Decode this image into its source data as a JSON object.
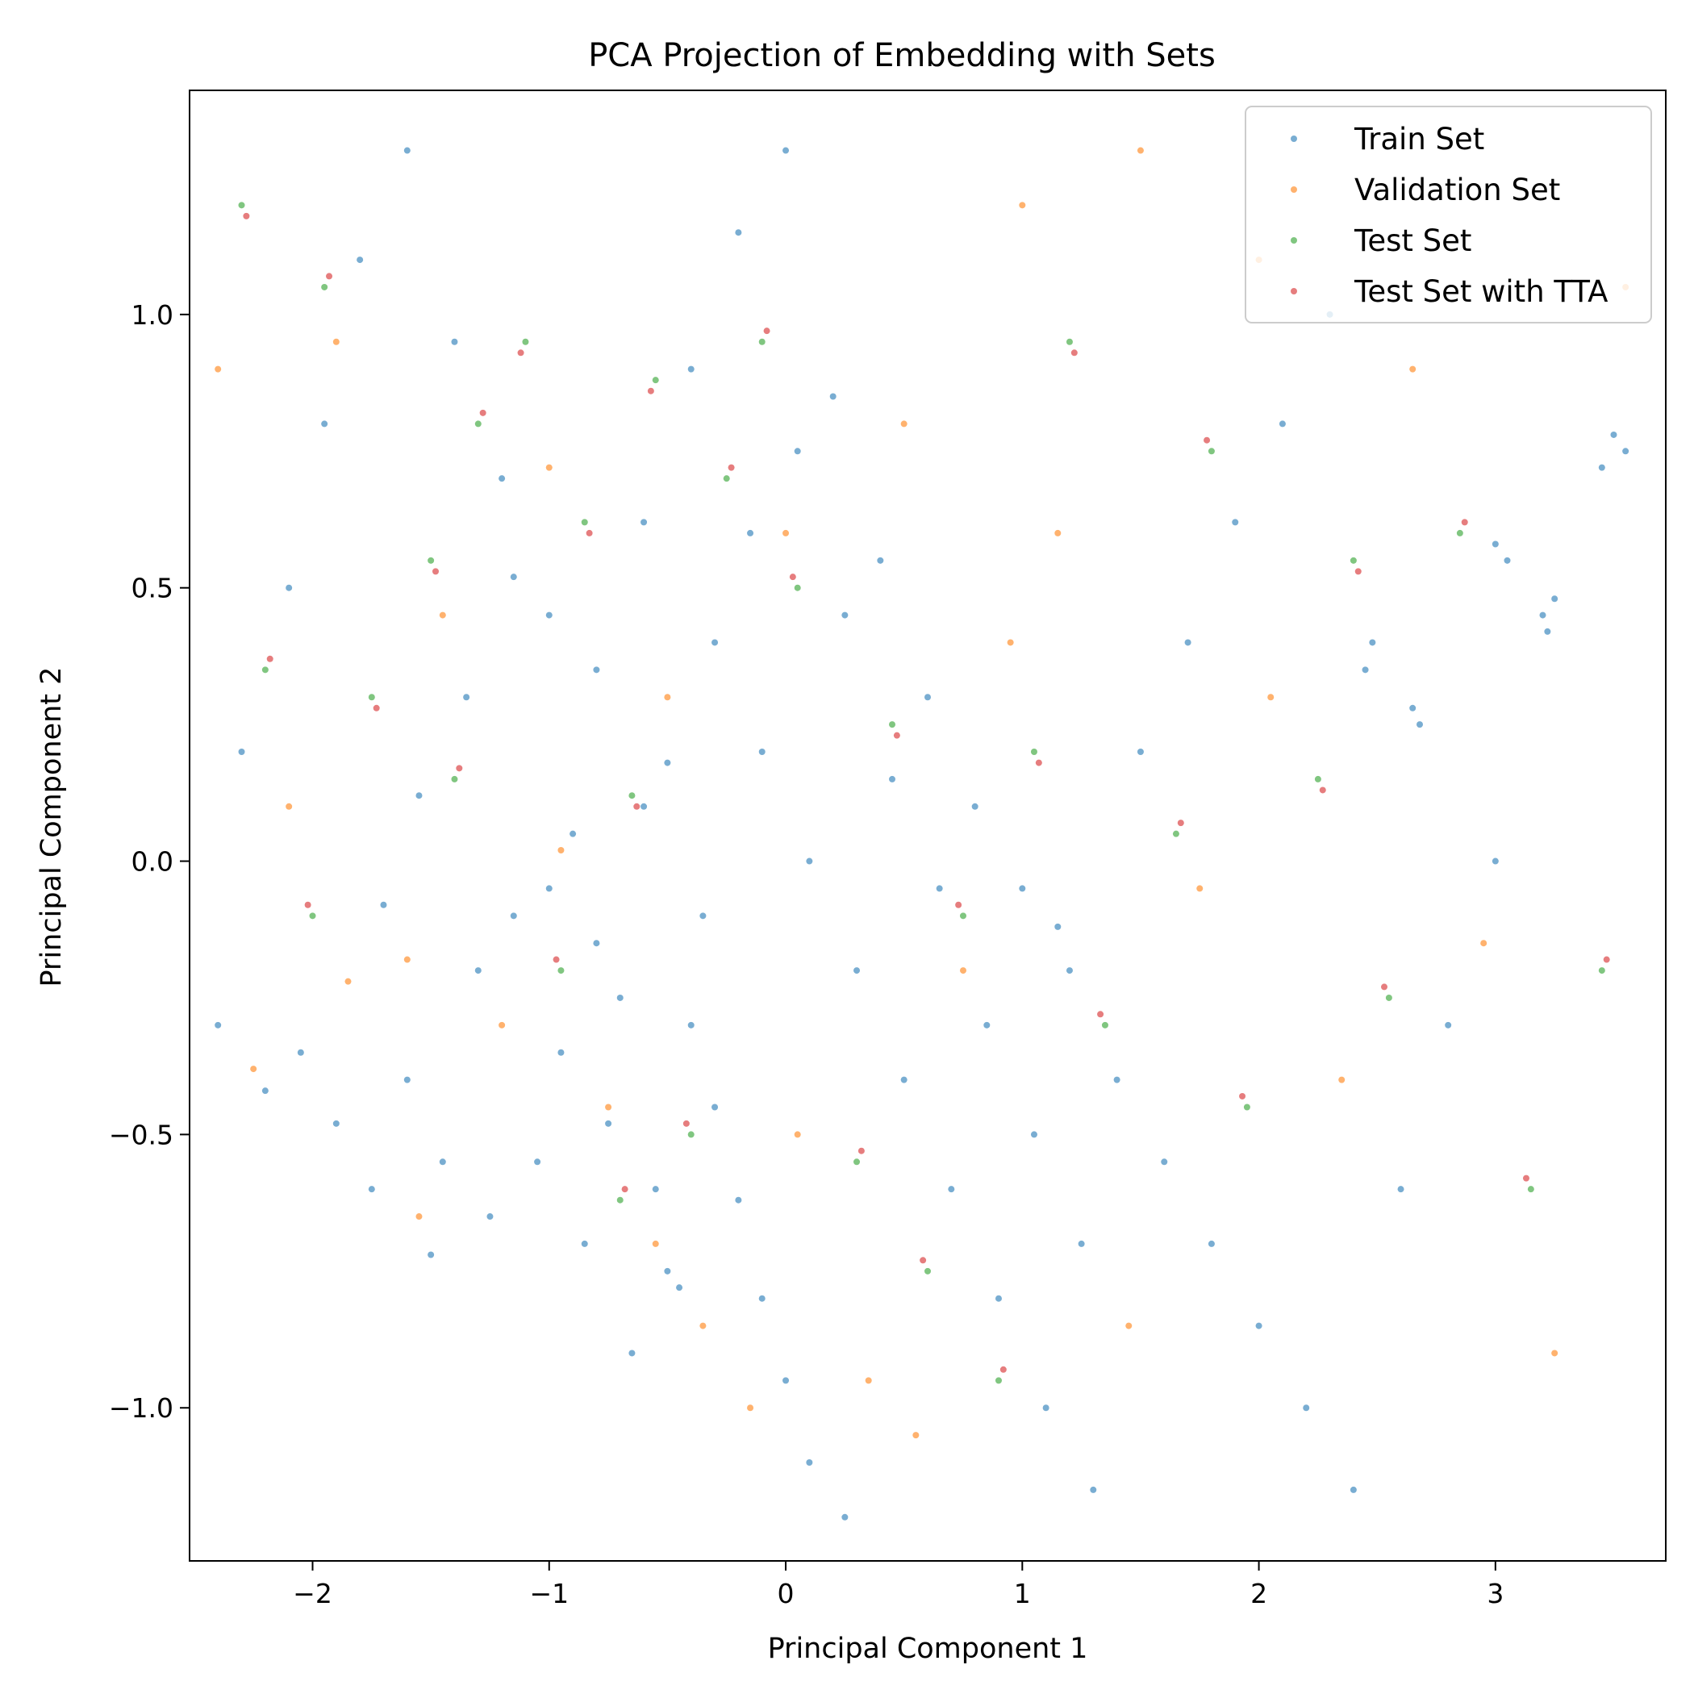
{
  "chart_data": {
    "type": "scatter",
    "title": "PCA Projection of Embedding with Sets",
    "xlabel": "Principal Component 1",
    "ylabel": "Principal Component 2",
    "xlim": [
      -2.52,
      3.72
    ],
    "ylim": [
      -1.28,
      1.41
    ],
    "xticks": [
      {
        "value": -2,
        "label": "−2"
      },
      {
        "value": -1,
        "label": "−1"
      },
      {
        "value": 0,
        "label": "0"
      },
      {
        "value": 1,
        "label": "1"
      },
      {
        "value": 2,
        "label": "2"
      },
      {
        "value": 3,
        "label": "3"
      }
    ],
    "yticks": [
      {
        "value": -1.0,
        "label": "−1.0"
      },
      {
        "value": -0.5,
        "label": "−0.5"
      },
      {
        "value": 0.0,
        "label": "0.0"
      },
      {
        "value": 0.5,
        "label": "0.5"
      },
      {
        "value": 1.0,
        "label": "1.0"
      }
    ],
    "grid": false,
    "legend_position": "top-right",
    "series": [
      {
        "name": "Train Set",
        "color": "#1f77b4",
        "opacity": 0.6,
        "points": [
          [
            -2.4,
            -0.3
          ],
          [
            -2.2,
            -0.42
          ],
          [
            -2.05,
            -0.35
          ],
          [
            -1.9,
            -0.48
          ],
          [
            -1.75,
            -0.6
          ],
          [
            -1.6,
            -0.4
          ],
          [
            -1.45,
            -0.55
          ],
          [
            -1.3,
            -0.2
          ],
          [
            -1.15,
            -0.1
          ],
          [
            -1.0,
            -0.05
          ],
          [
            -0.9,
            0.05
          ],
          [
            -0.8,
            -0.15
          ],
          [
            -0.7,
            -0.25
          ],
          [
            -0.6,
            0.1
          ],
          [
            -0.5,
            0.18
          ],
          [
            -0.4,
            -0.3
          ],
          [
            -0.3,
            -0.45
          ],
          [
            -0.2,
            -0.62
          ],
          [
            -0.1,
            -0.8
          ],
          [
            0.0,
            -0.95
          ],
          [
            0.1,
            -1.1
          ],
          [
            0.25,
            -1.2
          ],
          [
            -0.5,
            -0.75
          ],
          [
            -0.45,
            -0.78
          ],
          [
            -0.65,
            -0.9
          ],
          [
            -0.85,
            -0.7
          ],
          [
            -1.05,
            -0.55
          ],
          [
            -1.25,
            -0.65
          ],
          [
            -1.5,
            -0.72
          ],
          [
            -2.3,
            0.2
          ],
          [
            -2.1,
            0.5
          ],
          [
            -1.95,
            0.8
          ],
          [
            -1.8,
            1.1
          ],
          [
            -1.6,
            1.3
          ],
          [
            -1.4,
            0.95
          ],
          [
            -1.2,
            0.7
          ],
          [
            -1.0,
            0.45
          ],
          [
            -0.8,
            0.35
          ],
          [
            -0.6,
            0.62
          ],
          [
            -0.4,
            0.9
          ],
          [
            -0.2,
            1.15
          ],
          [
            0.0,
            1.3
          ],
          [
            0.2,
            0.85
          ],
          [
            0.4,
            0.55
          ],
          [
            0.6,
            0.3
          ],
          [
            0.8,
            0.1
          ],
          [
            1.0,
            -0.05
          ],
          [
            1.2,
            -0.2
          ],
          [
            1.4,
            -0.4
          ],
          [
            1.6,
            -0.55
          ],
          [
            1.8,
            -0.7
          ],
          [
            2.0,
            -0.85
          ],
          [
            2.2,
            -1.0
          ],
          [
            2.4,
            -1.15
          ],
          [
            2.6,
            -0.6
          ],
          [
            2.8,
            -0.3
          ],
          [
            3.0,
            0.0
          ],
          [
            3.2,
            0.45
          ],
          [
            3.22,
            0.42
          ],
          [
            3.25,
            0.48
          ],
          [
            2.65,
            0.28
          ],
          [
            2.68,
            0.25
          ],
          [
            2.45,
            0.35
          ],
          [
            2.48,
            0.4
          ],
          [
            1.15,
            -0.12
          ],
          [
            1.5,
            0.2
          ],
          [
            1.7,
            0.4
          ],
          [
            1.9,
            0.62
          ],
          [
            2.1,
            0.8
          ],
          [
            2.3,
            1.0
          ],
          [
            3.55,
            0.75
          ],
          [
            3.5,
            0.78
          ],
          [
            3.45,
            0.72
          ],
          [
            3.05,
            0.55
          ],
          [
            3.0,
            0.58
          ],
          [
            -0.3,
            0.4
          ],
          [
            -0.1,
            0.2
          ],
          [
            0.1,
            0.0
          ],
          [
            0.3,
            -0.2
          ],
          [
            0.5,
            -0.4
          ],
          [
            0.7,
            -0.6
          ],
          [
            0.9,
            -0.8
          ],
          [
            1.1,
            -1.0
          ],
          [
            1.3,
            -1.15
          ],
          [
            -1.7,
            -0.08
          ],
          [
            -1.55,
            0.12
          ],
          [
            -1.35,
            0.3
          ],
          [
            -1.15,
            0.52
          ],
          [
            -0.95,
            -0.35
          ],
          [
            -0.75,
            -0.48
          ],
          [
            -0.55,
            -0.6
          ],
          [
            -0.35,
            -0.1
          ],
          [
            -0.15,
            0.6
          ],
          [
            0.05,
            0.75
          ],
          [
            0.25,
            0.45
          ],
          [
            0.45,
            0.15
          ],
          [
            0.65,
            -0.05
          ],
          [
            0.85,
            -0.3
          ],
          [
            1.05,
            -0.5
          ],
          [
            1.25,
            -0.7
          ]
        ]
      },
      {
        "name": "Validation Set",
        "color": "#ff7f0e",
        "opacity": 0.6,
        "points": [
          [
            -2.25,
            -0.38
          ],
          [
            -1.85,
            -0.22
          ],
          [
            -1.55,
            -0.65
          ],
          [
            -1.2,
            -0.3
          ],
          [
            -0.95,
            0.02
          ],
          [
            -0.75,
            -0.45
          ],
          [
            -0.55,
            -0.7
          ],
          [
            -0.35,
            -0.85
          ],
          [
            -0.15,
            -1.0
          ],
          [
            0.05,
            -0.5
          ],
          [
            0.35,
            -0.95
          ],
          [
            0.55,
            -1.05
          ],
          [
            0.75,
            -0.2
          ],
          [
            0.95,
            0.4
          ],
          [
            1.15,
            0.6
          ],
          [
            1.45,
            -0.85
          ],
          [
            1.75,
            -0.05
          ],
          [
            2.05,
            0.3
          ],
          [
            2.35,
            -0.4
          ],
          [
            2.65,
            0.9
          ],
          [
            2.95,
            -0.15
          ],
          [
            3.25,
            -0.9
          ],
          [
            3.55,
            1.05
          ],
          [
            -1.9,
            0.95
          ],
          [
            -1.45,
            0.45
          ],
          [
            -1.0,
            0.72
          ],
          [
            -0.5,
            0.3
          ],
          [
            0.0,
            0.6
          ],
          [
            0.5,
            0.8
          ],
          [
            1.0,
            1.2
          ],
          [
            1.5,
            1.3
          ],
          [
            2.0,
            1.1
          ],
          [
            -2.4,
            0.9
          ],
          [
            -2.1,
            0.1
          ],
          [
            -1.6,
            -0.18
          ]
        ]
      },
      {
        "name": "Test Set",
        "color": "#2ca02c",
        "opacity": 0.6,
        "points": [
          [
            -2.3,
            1.2
          ],
          [
            -1.95,
            1.05
          ],
          [
            -1.5,
            0.55
          ],
          [
            -1.3,
            0.8
          ],
          [
            -1.1,
            0.95
          ],
          [
            -0.85,
            0.62
          ],
          [
            -0.55,
            0.88
          ],
          [
            -0.25,
            0.7
          ],
          [
            0.05,
            0.5
          ],
          [
            -0.65,
            0.12
          ],
          [
            -0.95,
            -0.2
          ],
          [
            -1.4,
            0.15
          ],
          [
            -2.2,
            0.35
          ],
          [
            -2.0,
            -0.1
          ],
          [
            -1.75,
            0.3
          ],
          [
            0.45,
            0.25
          ],
          [
            0.75,
            -0.1
          ],
          [
            1.05,
            0.2
          ],
          [
            1.35,
            -0.3
          ],
          [
            1.65,
            0.05
          ],
          [
            1.95,
            -0.45
          ],
          [
            2.25,
            0.15
          ],
          [
            2.55,
            -0.25
          ],
          [
            2.85,
            0.6
          ],
          [
            3.15,
            -0.6
          ],
          [
            3.45,
            -0.2
          ],
          [
            0.3,
            -0.55
          ],
          [
            0.6,
            -0.75
          ],
          [
            0.9,
            -0.95
          ],
          [
            -0.4,
            -0.5
          ],
          [
            -0.7,
            -0.62
          ],
          [
            1.2,
            0.95
          ],
          [
            1.8,
            0.75
          ],
          [
            2.4,
            0.55
          ],
          [
            -0.1,
            0.95
          ]
        ]
      },
      {
        "name": "Test Set with TTA",
        "color": "#d62728",
        "opacity": 0.6,
        "points": [
          [
            -2.28,
            1.18
          ],
          [
            -1.93,
            1.07
          ],
          [
            -1.48,
            0.53
          ],
          [
            -1.28,
            0.82
          ],
          [
            -1.12,
            0.93
          ],
          [
            -0.83,
            0.6
          ],
          [
            -0.57,
            0.86
          ],
          [
            -0.23,
            0.72
          ],
          [
            0.03,
            0.52
          ],
          [
            -0.63,
            0.1
          ],
          [
            -0.97,
            -0.18
          ],
          [
            -1.38,
            0.17
          ],
          [
            -2.18,
            0.37
          ],
          [
            -2.02,
            -0.08
          ],
          [
            -1.73,
            0.28
          ],
          [
            0.47,
            0.23
          ],
          [
            0.73,
            -0.08
          ],
          [
            1.07,
            0.18
          ],
          [
            1.33,
            -0.28
          ],
          [
            1.67,
            0.07
          ],
          [
            1.93,
            -0.43
          ],
          [
            2.27,
            0.13
          ],
          [
            2.53,
            -0.23
          ],
          [
            2.87,
            0.62
          ],
          [
            3.13,
            -0.58
          ],
          [
            3.47,
            -0.18
          ],
          [
            0.32,
            -0.53
          ],
          [
            0.58,
            -0.73
          ],
          [
            0.92,
            -0.93
          ],
          [
            -0.42,
            -0.48
          ],
          [
            -0.68,
            -0.6
          ],
          [
            1.22,
            0.93
          ],
          [
            1.78,
            0.77
          ],
          [
            2.42,
            0.53
          ],
          [
            -0.08,
            0.97
          ]
        ]
      }
    ]
  }
}
